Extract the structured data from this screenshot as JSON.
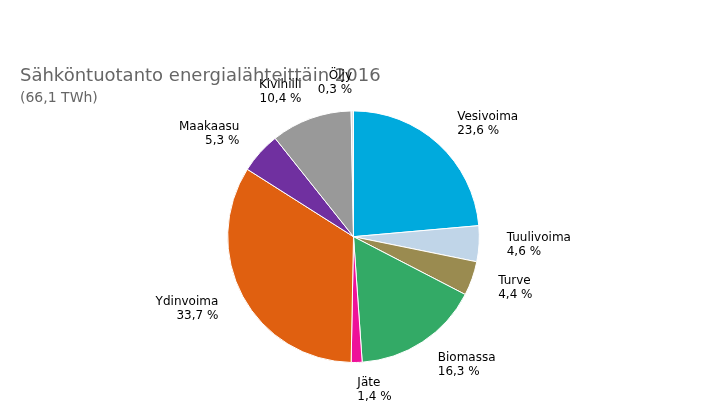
{
  "chart_data": {
    "type": "pie",
    "title": "Sähköntuotanto energialähteittäin 2016",
    "subtitle": "(66,1 TWh)",
    "categories": [
      "Vesivoima",
      "Tuulivoima",
      "Turve",
      "Biomassa",
      "Jäte",
      "Ydinvoima",
      "Maakaasu",
      "Kivihiili",
      "Öljy"
    ],
    "values": [
      23.6,
      4.6,
      4.4,
      16.3,
      1.4,
      33.7,
      5.3,
      10.4,
      0.3
    ],
    "value_labels": [
      "23,6 %",
      "4,6 %",
      "4,4 %",
      "16,3 %",
      "1,4 %",
      "33,7 %",
      "5,3 %",
      "10,4 %",
      "0,3 %"
    ],
    "colors": [
      "#00AADD",
      "#C0D5E8",
      "#9A8B50",
      "#33AA66",
      "#EE1199",
      "#E06010",
      "#7030A0",
      "#999999",
      "#E0E0E0"
    ],
    "data_labels": true
  }
}
